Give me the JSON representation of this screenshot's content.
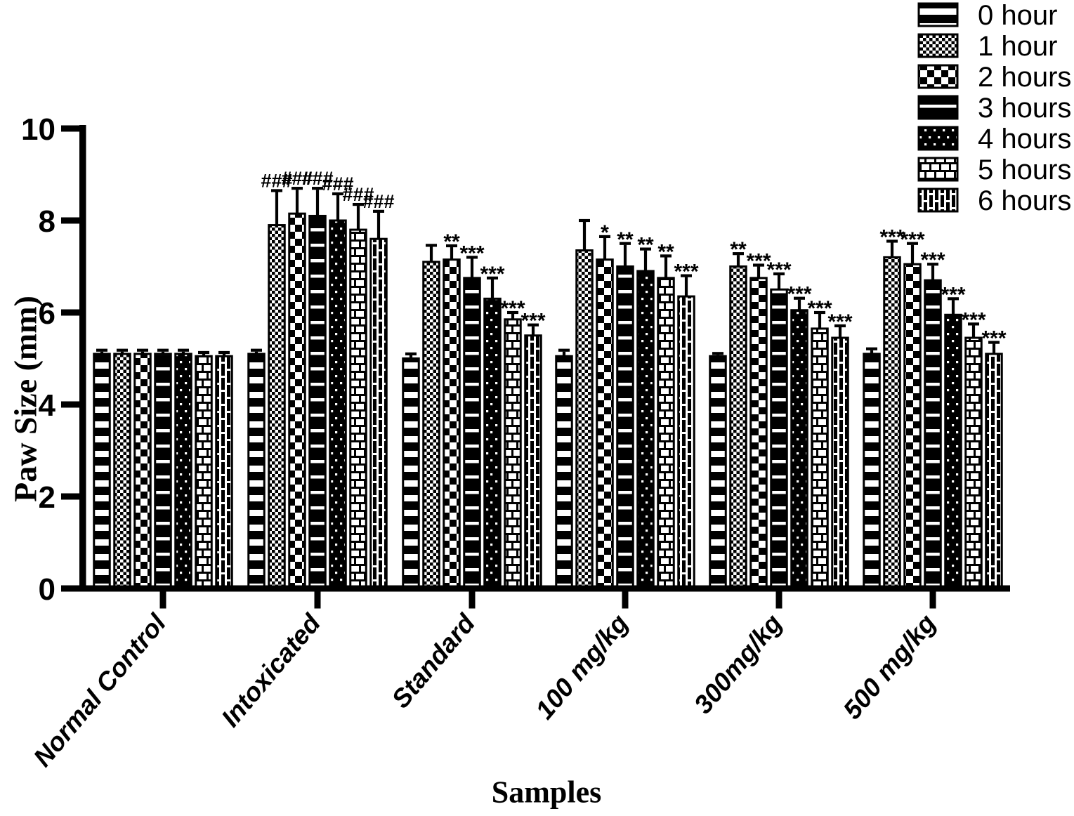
{
  "chart_data": {
    "type": "bar",
    "title": "",
    "xlabel": "Samples",
    "ylabel": "Paw Size (mm)",
    "ylim": [
      0,
      10
    ],
    "yticks": [
      0,
      2,
      4,
      6,
      8,
      10
    ],
    "grid": false,
    "legend_position": "top-right",
    "bar_color": "#000000",
    "background": "#ffffff",
    "categories": [
      "Normal Control",
      "Intoxicated",
      "Standard",
      "100 mg/kg",
      "300mg/kg",
      "500 mg/kg"
    ],
    "series": [
      {
        "name": "0 hour",
        "pattern": "horizontal-bands",
        "values": [
          5.1,
          5.1,
          5.0,
          5.05,
          5.05,
          5.1
        ],
        "errors": [
          0.08,
          0.08,
          0.1,
          0.13,
          0.06,
          0.11
        ],
        "sig": [
          "",
          "",
          "",
          "",
          "",
          ""
        ]
      },
      {
        "name": "1 hour",
        "pattern": "fine-checkerboard",
        "values": [
          5.1,
          7.9,
          7.1,
          7.35,
          7.0,
          7.2
        ],
        "errors": [
          0.08,
          0.75,
          0.36,
          0.65,
          0.28,
          0.35
        ],
        "sig": [
          "",
          "###",
          "",
          "",
          "**",
          "***"
        ]
      },
      {
        "name": "2 hours",
        "pattern": "coarse-checkerboard",
        "values": [
          5.1,
          8.15,
          7.15,
          7.15,
          6.75,
          7.05
        ],
        "errors": [
          0.08,
          0.55,
          0.3,
          0.5,
          0.28,
          0.45
        ],
        "sig": [
          "",
          "###",
          "**",
          "*",
          "***",
          "***"
        ]
      },
      {
        "name": "3 hours",
        "pattern": "thin-white-lines",
        "values": [
          5.1,
          8.1,
          6.75,
          7.0,
          6.5,
          6.7
        ],
        "errors": [
          0.08,
          0.6,
          0.45,
          0.5,
          0.34,
          0.35
        ],
        "sig": [
          "",
          "###",
          "***",
          "**",
          "***",
          "***"
        ]
      },
      {
        "name": "4 hours",
        "pattern": "white-dots",
        "values": [
          5.1,
          8.0,
          6.3,
          6.9,
          6.05,
          5.95
        ],
        "errors": [
          0.08,
          0.58,
          0.45,
          0.48,
          0.26,
          0.35
        ],
        "sig": [
          "",
          "###",
          "***",
          "**",
          "***",
          "***"
        ]
      },
      {
        "name": "5 hours",
        "pattern": "brick-horizontal",
        "values": [
          5.05,
          7.8,
          5.85,
          6.75,
          5.65,
          5.45
        ],
        "errors": [
          0.08,
          0.55,
          0.15,
          0.48,
          0.35,
          0.3
        ],
        "sig": [
          "",
          "###",
          "***",
          "**",
          "***",
          "***"
        ]
      },
      {
        "name": "6 hours",
        "pattern": "brick-vertical",
        "values": [
          5.05,
          7.6,
          5.5,
          6.35,
          5.45,
          5.1
        ],
        "errors": [
          0.08,
          0.6,
          0.23,
          0.45,
          0.26,
          0.25
        ],
        "sig": [
          "",
          "###",
          "***",
          "***",
          "***",
          "***"
        ]
      }
    ]
  }
}
